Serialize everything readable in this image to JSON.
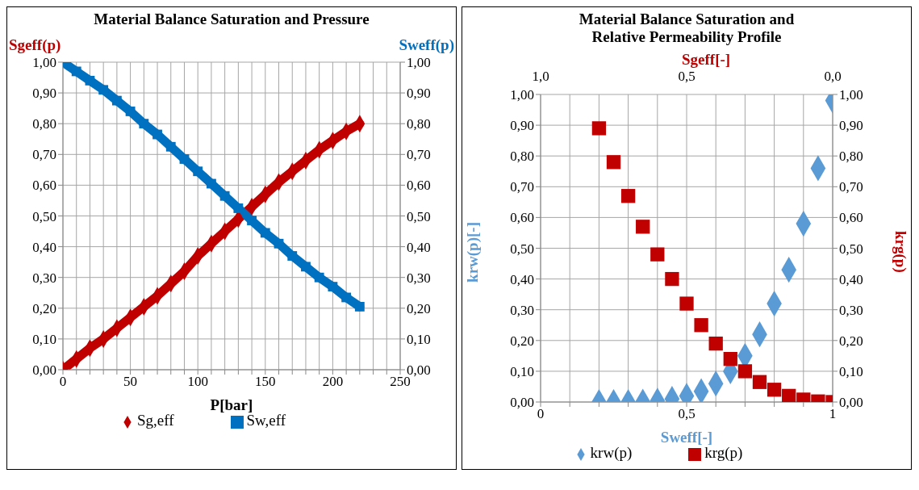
{
  "chart_data": [
    {
      "type": "line",
      "title": "Material Balance Saturation and Pressure",
      "xlabel": "P[bar]",
      "ylabel": "Sgeff(p)",
      "y2label": "Sweff(p)",
      "x": [
        0,
        10,
        20,
        30,
        40,
        50,
        60,
        70,
        80,
        90,
        100,
        110,
        120,
        130,
        140,
        150,
        160,
        170,
        180,
        190,
        200,
        210,
        220
      ],
      "series": [
        {
          "name": "Sg,eff",
          "color": "#c00000",
          "marker": "diamond",
          "values": [
            0,
            0.035,
            0.07,
            0.1,
            0.135,
            0.17,
            0.205,
            0.24,
            0.28,
            0.32,
            0.37,
            0.41,
            0.45,
            0.49,
            0.53,
            0.57,
            0.61,
            0.645,
            0.68,
            0.715,
            0.745,
            0.775,
            0.8
          ]
        },
        {
          "name": "Sw,eff",
          "color": "#0070c0",
          "marker": "square",
          "axis": "y2",
          "values": [
            1,
            0.97,
            0.94,
            0.91,
            0.875,
            0.84,
            0.8,
            0.765,
            0.725,
            0.685,
            0.645,
            0.605,
            0.565,
            0.525,
            0.485,
            0.445,
            0.41,
            0.37,
            0.335,
            0.3,
            0.27,
            0.235,
            0.205
          ]
        }
      ],
      "xlim": [
        0,
        250
      ],
      "xticks": [
        0,
        {
          "value": 10,
          "label": null
        },
        {
          "value": 20,
          "label": null
        },
        {
          "value": 30,
          "label": null
        },
        {
          "value": 40,
          "label": null
        },
        50,
        {
          "value": 60,
          "label": null
        },
        {
          "value": 70,
          "label": null
        },
        {
          "value": 80,
          "label": null
        },
        {
          "value": 90,
          "label": null
        },
        100,
        {
          "value": 110,
          "label": null
        },
        {
          "value": 120,
          "label": null
        },
        {
          "value": 130,
          "label": null
        },
        {
          "value": 140,
          "label": null
        },
        150,
        {
          "value": 160,
          "label": null
        },
        {
          "value": 170,
          "label": null
        },
        {
          "value": 180,
          "label": null
        },
        {
          "value": 190,
          "label": null
        },
        200,
        {
          "value": 210,
          "label": null
        },
        {
          "value": 220,
          "label": null
        },
        {
          "value": 230,
          "label": null
        },
        {
          "value": 240,
          "label": null
        },
        250
      ],
      "ylim": [
        0,
        1
      ],
      "yticks": [
        {
          "value": 0,
          "label": "0,00"
        },
        {
          "value": 0.1,
          "label": "0,10"
        },
        {
          "value": 0.2,
          "label": "0,20"
        },
        {
          "value": 0.3,
          "label": "0,30"
        },
        {
          "value": 0.4,
          "label": "0,40"
        },
        {
          "value": 0.5,
          "label": "0,50"
        },
        {
          "value": 0.6,
          "label": "0,60"
        },
        {
          "value": 0.7,
          "label": "0,70"
        },
        {
          "value": 0.8,
          "label": "0,80"
        },
        {
          "value": 0.9,
          "label": "0,90"
        },
        {
          "value": 1,
          "label": "1,00"
        }
      ],
      "y2lim": [
        0,
        1
      ],
      "y2ticks": [
        {
          "value": 0,
          "label": "0,00"
        },
        {
          "value": 0.1,
          "label": "0,10"
        },
        {
          "value": 0.2,
          "label": "0,20"
        },
        {
          "value": 0.3,
          "label": "0,30"
        },
        {
          "value": 0.4,
          "label": "0,40"
        },
        {
          "value": 0.5,
          "label": "0,50"
        },
        {
          "value": 0.6,
          "label": "0,60"
        },
        {
          "value": 0.7,
          "label": "0,70"
        },
        {
          "value": 0.8,
          "label": "0,80"
        },
        {
          "value": 0.9,
          "label": "0,90"
        },
        {
          "value": 1,
          "label": "1,00"
        }
      ],
      "grid": true,
      "legend": "bottom"
    },
    {
      "type": "scatter",
      "title": "Material Balance Saturation and Relative Permeability Profile",
      "xlabel": "Sweff[-]",
      "x2label": "Sgeff[-]",
      "ylabel": "krw(p)[-]",
      "y2label": "krg(p)",
      "series": [
        {
          "name": "krw(p)",
          "color": "#5b9bd5",
          "marker": "diamond",
          "x": [
            0.2,
            0.25,
            0.3,
            0.35,
            0.4,
            0.45,
            0.5,
            0.55,
            0.6,
            0.65,
            0.7,
            0.75,
            0.8,
            0.85,
            0.9,
            0.95,
            1
          ],
          "values": [
            0,
            0,
            0,
            0.001,
            0.004,
            0.01,
            0.02,
            0.035,
            0.06,
            0.1,
            0.15,
            0.22,
            0.32,
            0.43,
            0.58,
            0.76,
            0.98
          ]
        },
        {
          "name": "krg(p)",
          "color": "#c00000",
          "marker": "square",
          "axis": "y2",
          "x": [
            0.2,
            0.25,
            0.3,
            0.35,
            0.4,
            0.45,
            0.5,
            0.55,
            0.6,
            0.65,
            0.7,
            0.75,
            0.8,
            0.85,
            0.9,
            0.95,
            1
          ],
          "values": [
            0.89,
            0.78,
            0.67,
            0.57,
            0.48,
            0.4,
            0.32,
            0.25,
            0.19,
            0.14,
            0.1,
            0.065,
            0.04,
            0.02,
            0.008,
            0.002,
            0
          ]
        }
      ],
      "xlim": [
        0,
        1
      ],
      "xticks": [
        0,
        {
          "value": 0.1,
          "label": null
        },
        {
          "value": 0.2,
          "label": null
        },
        {
          "value": 0.3,
          "label": null
        },
        {
          "value": 0.4,
          "label": null
        },
        {
          "value": 0.5,
          "label": "0,5"
        },
        {
          "value": 0.6,
          "label": null
        },
        {
          "value": 0.7,
          "label": null
        },
        {
          "value": 0.8,
          "label": null
        },
        {
          "value": 0.9,
          "label": null
        },
        1
      ],
      "x2lim": [
        1,
        0
      ],
      "x2ticks": [
        {
          "value": 1,
          "label": "1,0"
        },
        {
          "value": 0.5,
          "label": "0,5"
        },
        {
          "value": 0,
          "label": "0,0"
        }
      ],
      "ylim": [
        0,
        1
      ],
      "yticks": [
        {
          "value": 0,
          "label": "0,00"
        },
        {
          "value": 0.1,
          "label": "0,10"
        },
        {
          "value": 0.2,
          "label": "0,20"
        },
        {
          "value": 0.3,
          "label": "0,30"
        },
        {
          "value": 0.4,
          "label": "0,40"
        },
        {
          "value": 0.5,
          "label": "0,50"
        },
        {
          "value": 0.6,
          "label": "0,60"
        },
        {
          "value": 0.7,
          "label": "0,70"
        },
        {
          "value": 0.8,
          "label": "0,80"
        },
        {
          "value": 0.9,
          "label": "0,90"
        },
        {
          "value": 1,
          "label": "1,00"
        }
      ],
      "y2lim": [
        0,
        1
      ],
      "y2ticks": [
        {
          "value": 0,
          "label": "0,00"
        },
        {
          "value": 0.1,
          "label": "0,10"
        },
        {
          "value": 0.2,
          "label": "0,20"
        },
        {
          "value": 0.3,
          "label": "0,30"
        },
        {
          "value": 0.4,
          "label": "0,40"
        },
        {
          "value": 0.5,
          "label": "0,50"
        },
        {
          "value": 0.6,
          "label": "0,60"
        },
        {
          "value": 0.7,
          "label": "0,70"
        },
        {
          "value": 0.8,
          "label": "0,80"
        },
        {
          "value": 0.9,
          "label": "0,90"
        },
        {
          "value": 1,
          "label": "1,00"
        }
      ],
      "grid": true,
      "legend": "bottom"
    }
  ]
}
